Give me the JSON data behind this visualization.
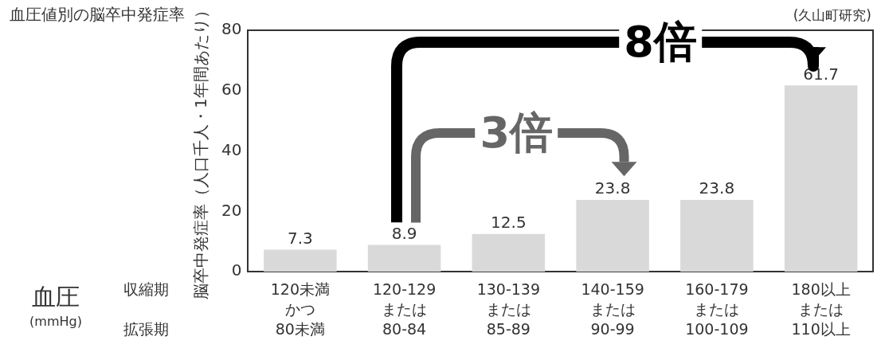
{
  "chart_data": {
    "type": "bar",
    "title": "血圧値別の脳卒中発症率",
    "ylabel": "脳卒中発症率（人口千人・1年間あたり）",
    "categories": [
      "120未満",
      "120-129",
      "130-139",
      "140-159",
      "160-179",
      "180以上"
    ],
    "values": [
      7.3,
      8.9,
      12.5,
      23.8,
      23.8,
      61.7
    ],
    "color": "#d9d9d9",
    "data_labels": true,
    "ylim": [
      0,
      80
    ],
    "yticks": [
      0,
      20,
      40,
      60,
      80
    ],
    "grid": false,
    "annotations": [
      "(久山町研究)",
      "収縮期",
      "拡張期",
      "血圧",
      "(mmHg)",
      "3倍",
      "8倍",
      "かつ",
      "80未満",
      "または",
      "80-84",
      "または",
      "85-89",
      "または",
      "90-99",
      "または",
      "100-109",
      "または",
      "110以上"
    ]
  }
}
